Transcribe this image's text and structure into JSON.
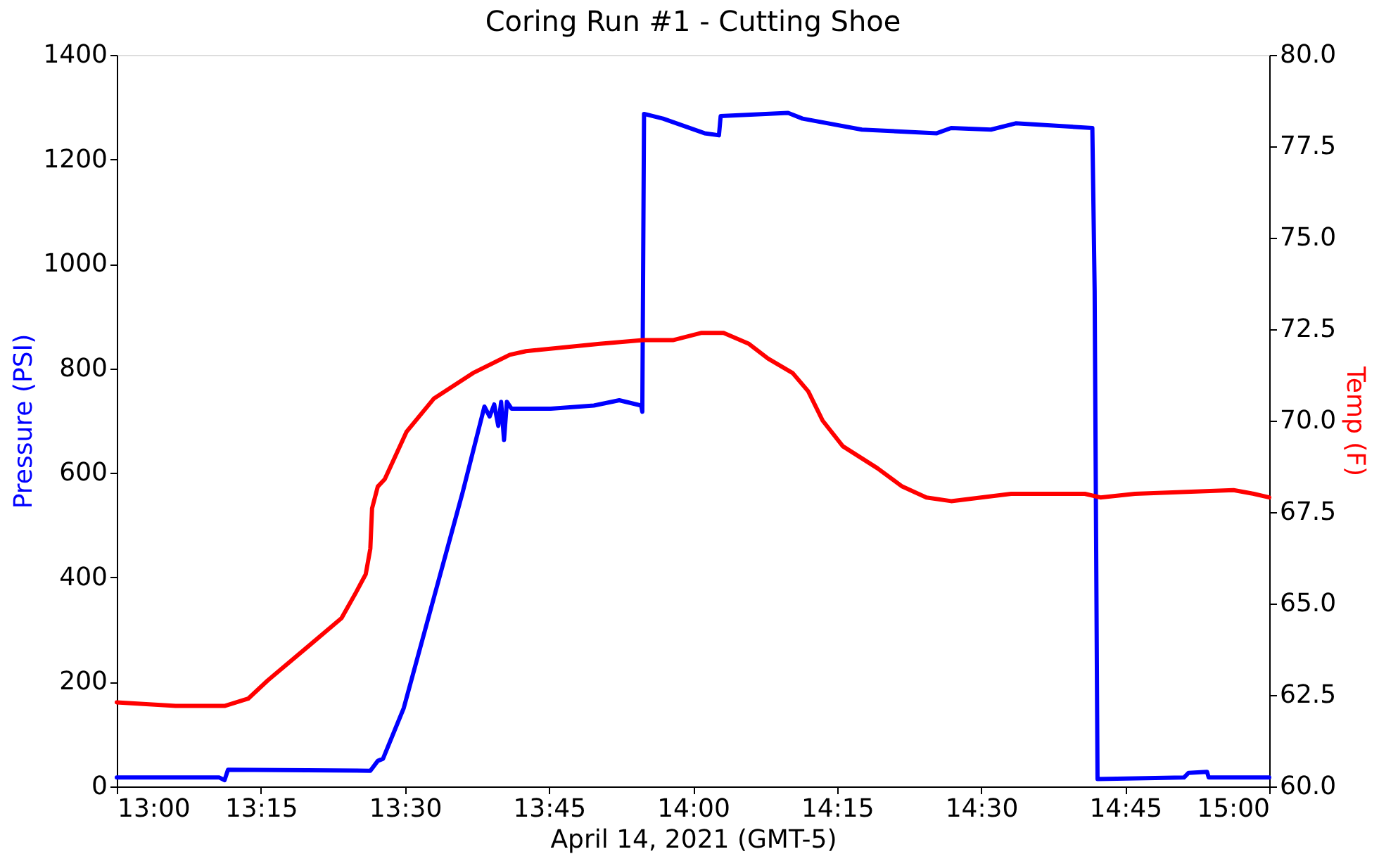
{
  "chart_data": {
    "type": "line",
    "title": "Coring Run #1 - Cutting Shoe",
    "xlabel": "April 14, 2021 (GMT-5)",
    "ylabel": "Pressure (PSI)",
    "y2label": "Temp (F)",
    "xlim": [
      13,
      15
    ],
    "xticks": [
      {
        "value": 13,
        "label": "13:00"
      },
      {
        "value": 13.25,
        "label": "13:15"
      },
      {
        "value": 13.5,
        "label": "13:30"
      },
      {
        "value": 13.75,
        "label": "13:45"
      },
      {
        "value": 14,
        "label": "14:00"
      },
      {
        "value": 14.25,
        "label": "14:15"
      },
      {
        "value": 14.5,
        "label": "14:30"
      },
      {
        "value": 14.75,
        "label": "14:45"
      },
      {
        "value": 15,
        "label": "15:00"
      }
    ],
    "ylim": [
      0,
      1400
    ],
    "yticks": [
      0,
      200,
      400,
      600,
      800,
      1000,
      1200,
      1400
    ],
    "y2lim": [
      60,
      80
    ],
    "y2ticks": [
      {
        "value": 60,
        "label": "60.0"
      },
      {
        "value": 62.5,
        "label": "62.5"
      },
      {
        "value": 65,
        "label": "65.0"
      },
      {
        "value": 67.5,
        "label": "67.5"
      },
      {
        "value": 70,
        "label": "70.0"
      },
      {
        "value": 72.5,
        "label": "72.5"
      },
      {
        "value": 75,
        "label": "75.0"
      },
      {
        "value": 77.5,
        "label": "77.5"
      },
      {
        "value": 80,
        "label": "80.0"
      }
    ],
    "grid": false,
    "series": [
      {
        "color": "#0000ff",
        "x": [
          13.0,
          13.178,
          13.187,
          13.193,
          13.44,
          13.453,
          13.462,
          13.498,
          13.55,
          13.6,
          13.638,
          13.647,
          13.655,
          13.662,
          13.667,
          13.672,
          13.677,
          13.685,
          13.753,
          13.828,
          13.872,
          13.91,
          13.912,
          13.915,
          13.948,
          14.02,
          14.045,
          14.048,
          14.165,
          14.19,
          14.293,
          14.423,
          14.448,
          14.517,
          14.56,
          14.693,
          14.697,
          14.702,
          14.852,
          14.86,
          14.892,
          14.895,
          15.0
        ],
        "values": [
          17,
          17,
          12,
          32,
          30,
          49,
          53,
          150,
          360,
          562,
          727,
          708,
          731,
          690,
          736,
          663,
          736,
          723,
          723,
          729,
          739,
          729,
          717,
          1287,
          1278,
          1250,
          1246,
          1283,
          1289,
          1278,
          1257,
          1250,
          1260,
          1257,
          1269,
          1260,
          949,
          14,
          17,
          26,
          28,
          17,
          17
        ]
      },
      {
        "color": "#ff0000",
        "axis": "y2",
        "x": [
          13.0,
          13.102,
          13.187,
          13.228,
          13.262,
          13.33,
          13.39,
          13.415,
          13.432,
          13.44,
          13.443,
          13.453,
          13.465,
          13.503,
          13.55,
          13.618,
          13.682,
          13.71,
          13.838,
          13.913,
          13.965,
          14.015,
          14.053,
          14.097,
          14.13,
          14.173,
          14.2,
          14.225,
          14.26,
          14.32,
          14.363,
          14.405,
          14.448,
          14.552,
          14.68,
          14.707,
          14.767,
          14.938,
          14.973,
          15.0
        ],
        "values": [
          62.3,
          62.2,
          62.2,
          62.4,
          62.9,
          63.8,
          64.6,
          65.3,
          65.8,
          66.5,
          67.6,
          68.2,
          68.4,
          69.7,
          70.6,
          71.3,
          71.8,
          71.9,
          72.1,
          72.2,
          72.2,
          72.4,
          72.4,
          72.1,
          71.7,
          71.3,
          70.8,
          70.0,
          69.3,
          68.7,
          68.2,
          67.9,
          67.8,
          68.0,
          68.0,
          67.9,
          68.0,
          68.1,
          68.0,
          67.9
        ]
      }
    ]
  }
}
